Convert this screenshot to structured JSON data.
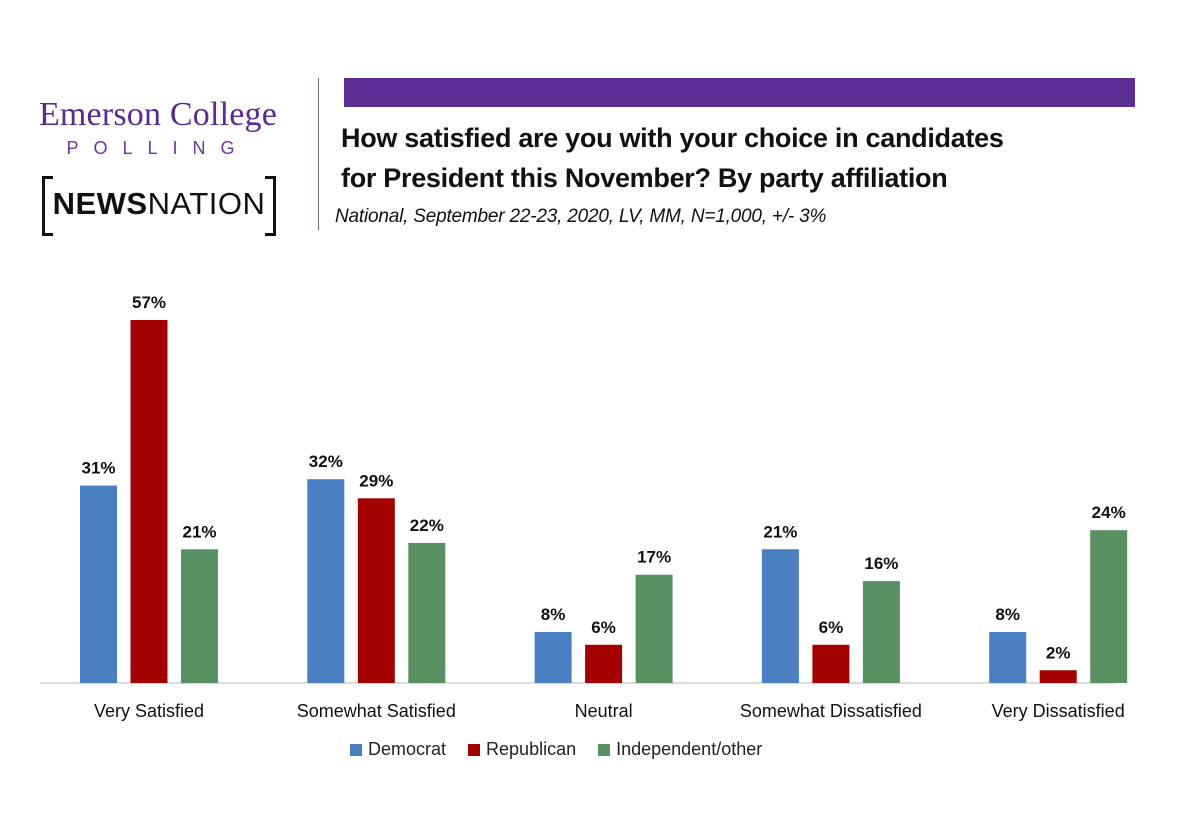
{
  "header": {
    "org_name": "Emerson College",
    "org_sub": "POLLING",
    "partner_bold": "NEWS",
    "partner_regular": "NATION",
    "accent_color": "#5b2c94"
  },
  "chart_data": {
    "type": "bar",
    "title": "How satisfied are you with your choice in candidates for President this November? By party affiliation",
    "title_line1": "How satisfied are you with your choice in candidates",
    "title_line2": "for President this November? By party affiliation",
    "subtitle": "National, September 22-23, 2020, LV, MM, N=1,000, +/- 3%",
    "categories": [
      "Very Satisfied",
      "Somewhat Satisfied",
      "Neutral",
      "Somewhat Dissatisfied",
      "Very Dissatisfied"
    ],
    "series": [
      {
        "name": "Democrat",
        "color": "#4a7fc1",
        "values": [
          31,
          32,
          8,
          21,
          8
        ],
        "labels": [
          "31%",
          "32%",
          "8%",
          "21%",
          "8%"
        ]
      },
      {
        "name": "Republican",
        "color": "#a50000",
        "values": [
          57,
          29,
          6,
          6,
          2
        ],
        "labels": [
          "57%",
          "29%",
          "6%",
          "6%",
          "2%"
        ]
      },
      {
        "name": "Independent/other",
        "color": "#5a9163",
        "values": [
          21,
          22,
          17,
          16,
          24
        ],
        "labels": [
          "21%",
          "22%",
          "17%",
          "16%",
          "24%"
        ]
      }
    ],
    "xlabel": "",
    "ylabel": "",
    "ylim": [
      0,
      57
    ],
    "grid": false,
    "legend_position": "bottom"
  }
}
